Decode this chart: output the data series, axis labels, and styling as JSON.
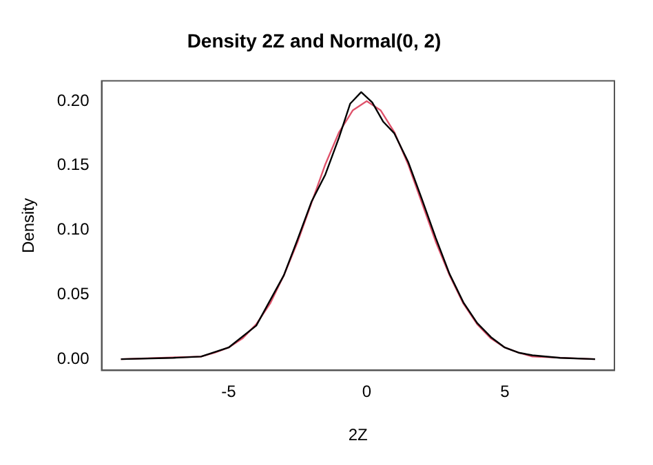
{
  "chart_data": {
    "type": "line",
    "title": "Density 2Z and Normal(0, 2)",
    "xlabel": "2Z",
    "ylabel": "Density",
    "xlim": [
      -9.6,
      8.97
    ],
    "ylim": [
      -0.0087,
      0.2157
    ],
    "xticks": [
      -5,
      0,
      5
    ],
    "yticks": [
      {
        "value": 0,
        "label": "0.00"
      },
      {
        "value": 0.05,
        "label": "0.05"
      },
      {
        "value": 0.1,
        "label": "0.10"
      },
      {
        "value": 0.15,
        "label": "0.15"
      },
      {
        "value": 0.2,
        "label": "0.20"
      }
    ],
    "grid": false,
    "legend": false,
    "marker": "none",
    "line_style": "solid",
    "series": [
      {
        "color": "#000000",
        "x": [
          -8.9,
          -7,
          -6,
          -5,
          -4,
          -3,
          -2.5,
          -2,
          -1.5,
          -1,
          -0.6,
          -0.2,
          0.2,
          0.6,
          1,
          1.5,
          2,
          2.5,
          3,
          3.5,
          4,
          4.5,
          5,
          5.5,
          6,
          7,
          8.27
        ],
        "values": [
          0.0,
          0.001,
          0.002,
          0.009,
          0.026,
          0.065,
          0.093,
          0.122,
          0.143,
          0.172,
          0.198,
          0.207,
          0.199,
          0.184,
          0.175,
          0.153,
          0.124,
          0.094,
          0.066,
          0.044,
          0.028,
          0.017,
          0.009,
          0.005,
          0.003,
          0.001,
          0.0
        ]
      },
      {
        "color": "#df536b",
        "x": [
          -8.9,
          -6,
          -5.5,
          -5,
          -4.5,
          -4,
          -3.5,
          -3,
          -2.5,
          -2,
          -1.5,
          -1,
          -0.5,
          0,
          0.5,
          1,
          1.5,
          2,
          2.5,
          3,
          3.5,
          4,
          4.5,
          5,
          5.5,
          6,
          8.27
        ],
        "values": [
          0.0,
          0.002,
          0.005,
          0.009,
          0.016,
          0.027,
          0.043,
          0.065,
          0.091,
          0.121,
          0.151,
          0.176,
          0.193,
          0.2,
          0.193,
          0.176,
          0.151,
          0.121,
          0.091,
          0.065,
          0.043,
          0.027,
          0.016,
          0.009,
          0.005,
          0.002,
          0.0
        ]
      }
    ]
  }
}
